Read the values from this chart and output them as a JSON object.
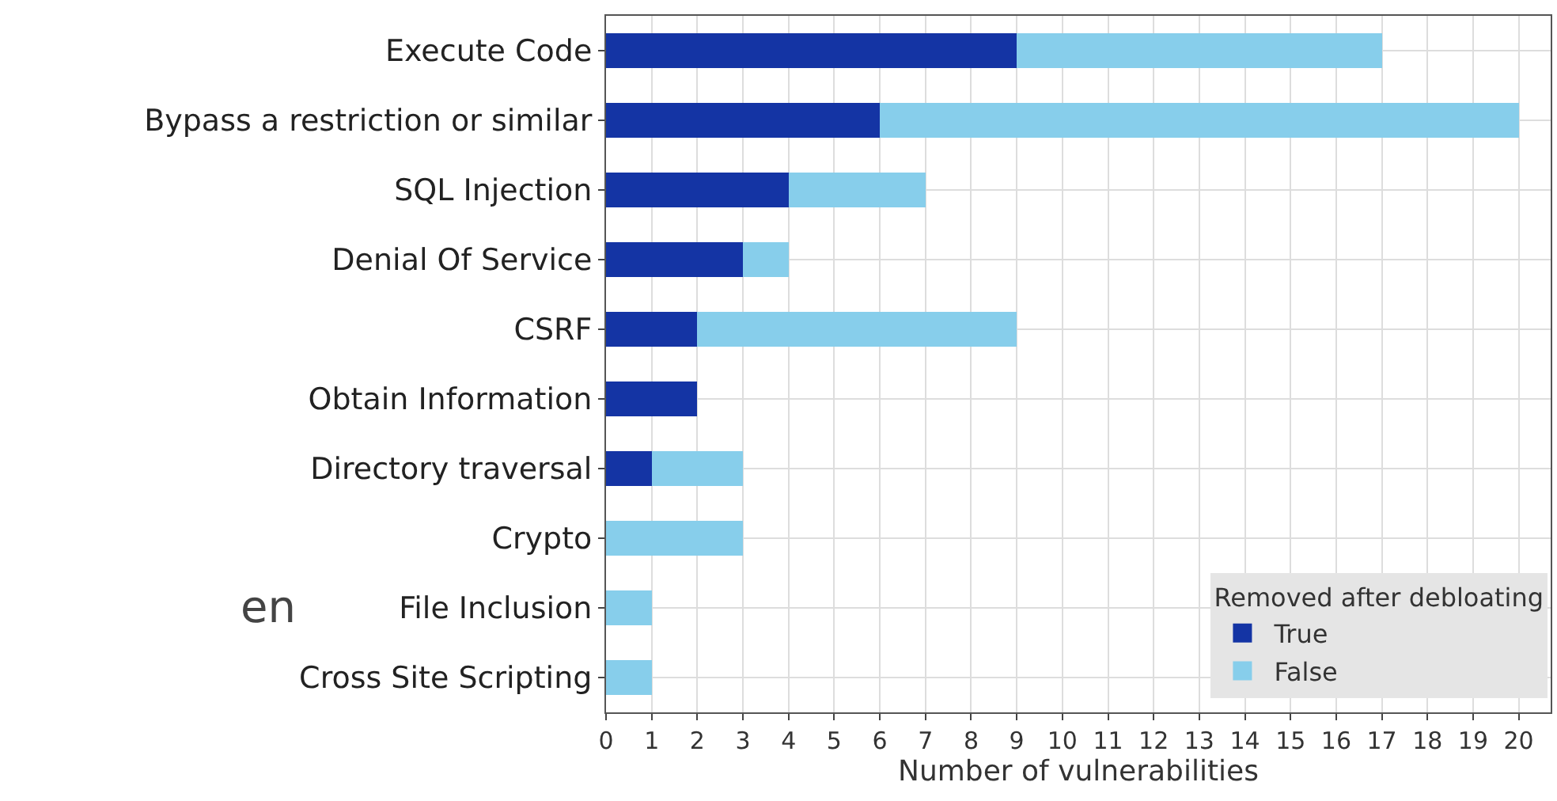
{
  "chart_data": {
    "type": "bar",
    "orientation": "horizontal",
    "stacked": true,
    "categories": [
      "Execute Code",
      "Bypass a restriction or similar",
      "SQL Injection",
      "Denial Of Service",
      "CSRF",
      "Obtain Information",
      "Directory traversal",
      "Crypto",
      "File Inclusion",
      "Cross Site Scripting"
    ],
    "series": [
      {
        "name": "True",
        "color": "#1434a4",
        "values": [
          9,
          6,
          4,
          3,
          2,
          2,
          1,
          0,
          0,
          0
        ]
      },
      {
        "name": "False",
        "color": "#87ceeb",
        "values": [
          8,
          14,
          3,
          1,
          7,
          0,
          2,
          3,
          1,
          1
        ]
      }
    ],
    "xlabel": "Number of vulnerabilities",
    "legend_title": "Removed after debloating",
    "legend": "bottom right",
    "xlim": [
      0,
      20.7
    ],
    "xticks": [
      0,
      1,
      2,
      3,
      4,
      5,
      6,
      7,
      8,
      9,
      10,
      11,
      12,
      13,
      14,
      15,
      16,
      17,
      18,
      19,
      20
    ],
    "grid": true,
    "annotations": [
      "en"
    ]
  }
}
